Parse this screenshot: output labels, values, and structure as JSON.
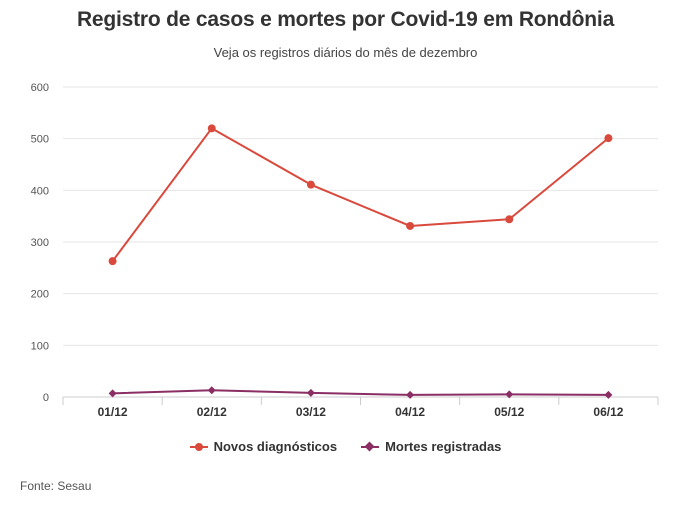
{
  "title": "Registro de casos e mortes por Covid-19 em Rondônia",
  "subtitle": "Veja os registros diários do mês de dezembro",
  "source": "Fonte: Sesau",
  "colors": {
    "series1": "#d9493c",
    "series2": "#8a2e64",
    "grid": "#e6e6e6",
    "axis": "#cccccc",
    "text": "#333333"
  },
  "chart_data": {
    "type": "line",
    "title": "Registro de casos e mortes por Covid-19 em Rondônia",
    "subtitle": "Veja os registros diários do mês de dezembro",
    "categories": [
      "01/12",
      "02/12",
      "03/12",
      "04/12",
      "05/12",
      "06/12"
    ],
    "series": [
      {
        "name": "Novos diagnósticos",
        "values": [
          263,
          520,
          411,
          331,
          344,
          501
        ],
        "color": "#d9493c",
        "marker": "circle"
      },
      {
        "name": "Mortes registradas",
        "values": [
          7,
          13,
          8,
          4,
          5,
          4
        ],
        "color": "#8a2e64",
        "marker": "diamond"
      }
    ],
    "ylim": [
      0,
      600
    ],
    "yticks": [
      0,
      100,
      200,
      300,
      400,
      500,
      600
    ],
    "grid": true,
    "legend": "bottom-center"
  }
}
